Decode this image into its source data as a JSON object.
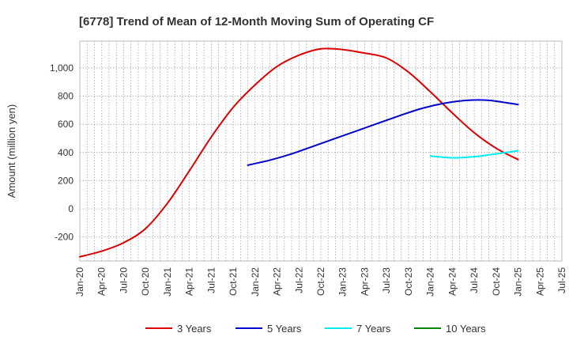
{
  "chart_data": {
    "type": "line",
    "title": "[6778]  Trend of Mean of 12-Month Moving Sum of Operating CF",
    "xlabel": "",
    "ylabel": "Amount (million yen)",
    "ylim": [
      -370,
      1190
    ],
    "yticks": [
      -200,
      0,
      200,
      400,
      600,
      800,
      1000
    ],
    "ytick_labels": [
      "-200",
      "0",
      "200",
      "400",
      "600",
      "800",
      "1,000"
    ],
    "x_range": [
      0,
      60
    ],
    "x_ticks": [
      {
        "label": "Jan-20",
        "m": 0
      },
      {
        "label": "Apr-20",
        "m": 3
      },
      {
        "label": "Jul-20",
        "m": 6
      },
      {
        "label": "Oct-20",
        "m": 9
      },
      {
        "label": "Jan-21",
        "m": 12
      },
      {
        "label": "Apr-21",
        "m": 15
      },
      {
        "label": "Jul-21",
        "m": 18
      },
      {
        "label": "Oct-21",
        "m": 21
      },
      {
        "label": "Jan-22",
        "m": 24
      },
      {
        "label": "Apr-22",
        "m": 27
      },
      {
        "label": "Jul-22",
        "m": 30
      },
      {
        "label": "Oct-22",
        "m": 33
      },
      {
        "label": "Jan-23",
        "m": 36
      },
      {
        "label": "Apr-23",
        "m": 39
      },
      {
        "label": "Jul-23",
        "m": 42
      },
      {
        "label": "Oct-23",
        "m": 45
      },
      {
        "label": "Jan-24",
        "m": 48
      },
      {
        "label": "Apr-24",
        "m": 51
      },
      {
        "label": "Jul-24",
        "m": 54
      },
      {
        "label": "Oct-24",
        "m": 57
      },
      {
        "label": "Jan-25",
        "m": 60
      },
      {
        "label": "Apr-25",
        "m": 63
      },
      {
        "label": "Jul-25",
        "m": 66
      }
    ],
    "grid": true,
    "legend_position": "bottom",
    "series": [
      {
        "name": "3 Years",
        "color": "#dd0000",
        "points": [
          [
            0,
            -340
          ],
          [
            3,
            -300
          ],
          [
            6,
            -240
          ],
          [
            9,
            -140
          ],
          [
            12,
            40
          ],
          [
            15,
            270
          ],
          [
            18,
            510
          ],
          [
            21,
            720
          ],
          [
            24,
            880
          ],
          [
            27,
            1010
          ],
          [
            30,
            1090
          ],
          [
            33,
            1135
          ],
          [
            36,
            1130
          ],
          [
            39,
            1105
          ],
          [
            42,
            1070
          ],
          [
            45,
            970
          ],
          [
            48,
            830
          ],
          [
            51,
            680
          ],
          [
            54,
            540
          ],
          [
            57,
            430
          ],
          [
            60,
            350
          ]
        ]
      },
      {
        "name": "5 Years",
        "color": "#0000cc",
        "points": [
          [
            23,
            310
          ],
          [
            26,
            345
          ],
          [
            29,
            390
          ],
          [
            32,
            445
          ],
          [
            35,
            500
          ],
          [
            38,
            555
          ],
          [
            41,
            610
          ],
          [
            44,
            665
          ],
          [
            47,
            715
          ],
          [
            50,
            750
          ],
          [
            53,
            770
          ],
          [
            56,
            770
          ],
          [
            60,
            740
          ]
        ]
      },
      {
        "name": "7 Years",
        "color": "#00eeee",
        "points": [
          [
            48,
            375
          ],
          [
            51,
            362
          ],
          [
            54,
            370
          ],
          [
            57,
            390
          ],
          [
            60,
            412
          ]
        ]
      },
      {
        "name": "10 Years",
        "color": "#008800",
        "points": []
      }
    ]
  }
}
